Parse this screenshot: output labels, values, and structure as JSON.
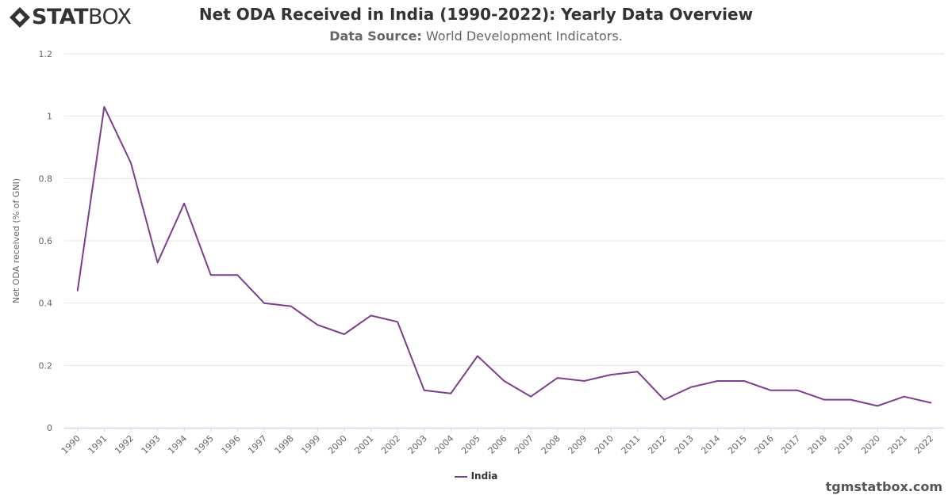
{
  "brand": {
    "bold": "STAT",
    "light": "BOX"
  },
  "header": {
    "title": "Net ODA Received in India (1990-2022): Yearly Data Overview",
    "subtitle_label": "Data Source:",
    "subtitle_value": " World Development Indicators."
  },
  "colors": {
    "series": "#7b3f8c",
    "grid": "#e6e6e6",
    "axis_text": "#666666"
  },
  "chart_data": {
    "type": "line",
    "title": "Net ODA Received in India (1990-2022): Yearly Data Overview",
    "subtitle": "Data Source: World Development Indicators.",
    "xlabel": "",
    "ylabel": "Net ODA received (% of GNI)",
    "ylim": [
      0,
      1.2
    ],
    "yticks": [
      "0",
      "0.2",
      "0.4",
      "0.6",
      "0.8",
      "1",
      "1.2"
    ],
    "categories": [
      "1990",
      "1991",
      "1992",
      "1993",
      "1994",
      "1995",
      "1996",
      "1997",
      "1998",
      "1999",
      "2000",
      "2001",
      "2002",
      "2003",
      "2004",
      "2005",
      "2006",
      "2007",
      "2008",
      "2009",
      "2010",
      "2011",
      "2012",
      "2013",
      "2014",
      "2015",
      "2016",
      "2017",
      "2018",
      "2019",
      "2020",
      "2021",
      "2022"
    ],
    "series": [
      {
        "name": "India",
        "values": [
          0.44,
          1.03,
          0.85,
          0.53,
          0.72,
          0.49,
          0.49,
          0.4,
          0.39,
          0.33,
          0.3,
          0.36,
          0.34,
          0.12,
          0.11,
          0.23,
          0.15,
          0.1,
          0.16,
          0.15,
          0.17,
          0.18,
          0.09,
          0.13,
          0.15,
          0.15,
          0.12,
          0.12,
          0.09,
          0.09,
          0.07,
          0.1,
          0.08
        ]
      }
    ],
    "grid": true,
    "legend": "bottom-center"
  },
  "legend": {
    "label": "India"
  },
  "watermark": "tgmstatbox.com"
}
